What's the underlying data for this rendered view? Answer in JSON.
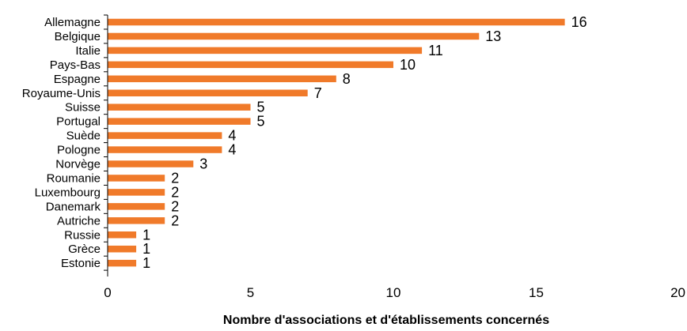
{
  "chart_data": {
    "type": "bar",
    "orientation": "horizontal",
    "categories": [
      "Allemagne",
      "Belgique",
      "Italie",
      "Pays-Bas",
      "Espagne",
      "Royaume-Unis",
      "Suisse",
      "Portugal",
      "Suède",
      "Pologne",
      "Norvège",
      "Roumanie",
      "Luxembourg",
      "Danemark",
      "Autriche",
      "Russie",
      "Grèce",
      "Estonie"
    ],
    "values": [
      16,
      13,
      11,
      10,
      8,
      7,
      5,
      5,
      4,
      4,
      3,
      2,
      2,
      2,
      2,
      1,
      1,
      1
    ],
    "xlabel": "Nombre d'associations et d'établissements concernés",
    "ylabel": "",
    "xlim": [
      0,
      20
    ],
    "xticks": [
      0,
      5,
      10,
      15,
      20
    ],
    "grid": false,
    "legend": "none",
    "bar_color": "#f07a2a",
    "axis_color": "#000000"
  }
}
